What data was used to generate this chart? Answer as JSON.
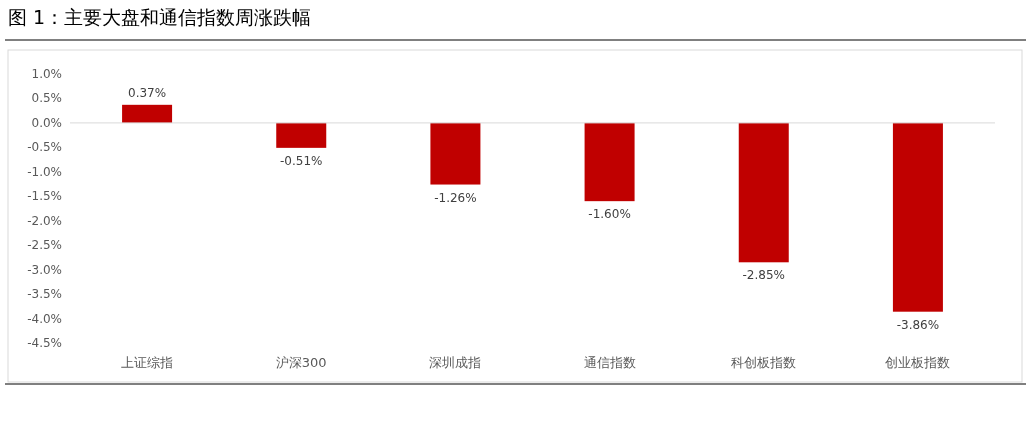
{
  "chart_data": {
    "type": "bar",
    "title": "图 1：主要大盘和通信指数周涨跌幅",
    "categories": [
      "上证综指",
      "沪深300",
      "深圳成指",
      "通信指数",
      "科创板指数",
      "创业板指数"
    ],
    "values": [
      0.37,
      -0.51,
      -1.26,
      -1.6,
      -2.85,
      -3.86
    ],
    "value_labels": [
      "0.37%",
      "-0.51%",
      "-1.26%",
      "-1.60%",
      "-2.85%",
      "-3.86%"
    ],
    "color": "#c00000",
    "ylim": [
      -4.5,
      1.0
    ],
    "yticks": [
      {
        "value": 1.0,
        "label": "1.0%"
      },
      {
        "value": 0.5,
        "label": "0.5%"
      },
      {
        "value": 0,
        "label": "0.0%"
      },
      {
        "value": -0.5,
        "label": "-0.5%"
      },
      {
        "value": -1.0,
        "label": "-1.0%"
      },
      {
        "value": -1.5,
        "label": "-1.5%"
      },
      {
        "value": -2.0,
        "label": "-2.0%"
      },
      {
        "value": -2.5,
        "label": "-2.5%"
      },
      {
        "value": -3.0,
        "label": "-3.0%"
      },
      {
        "value": -3.5,
        "label": "-3.5%"
      },
      {
        "value": -4.0,
        "label": "-4.0%"
      },
      {
        "value": -4.5,
        "label": "-4.5%"
      }
    ]
  }
}
